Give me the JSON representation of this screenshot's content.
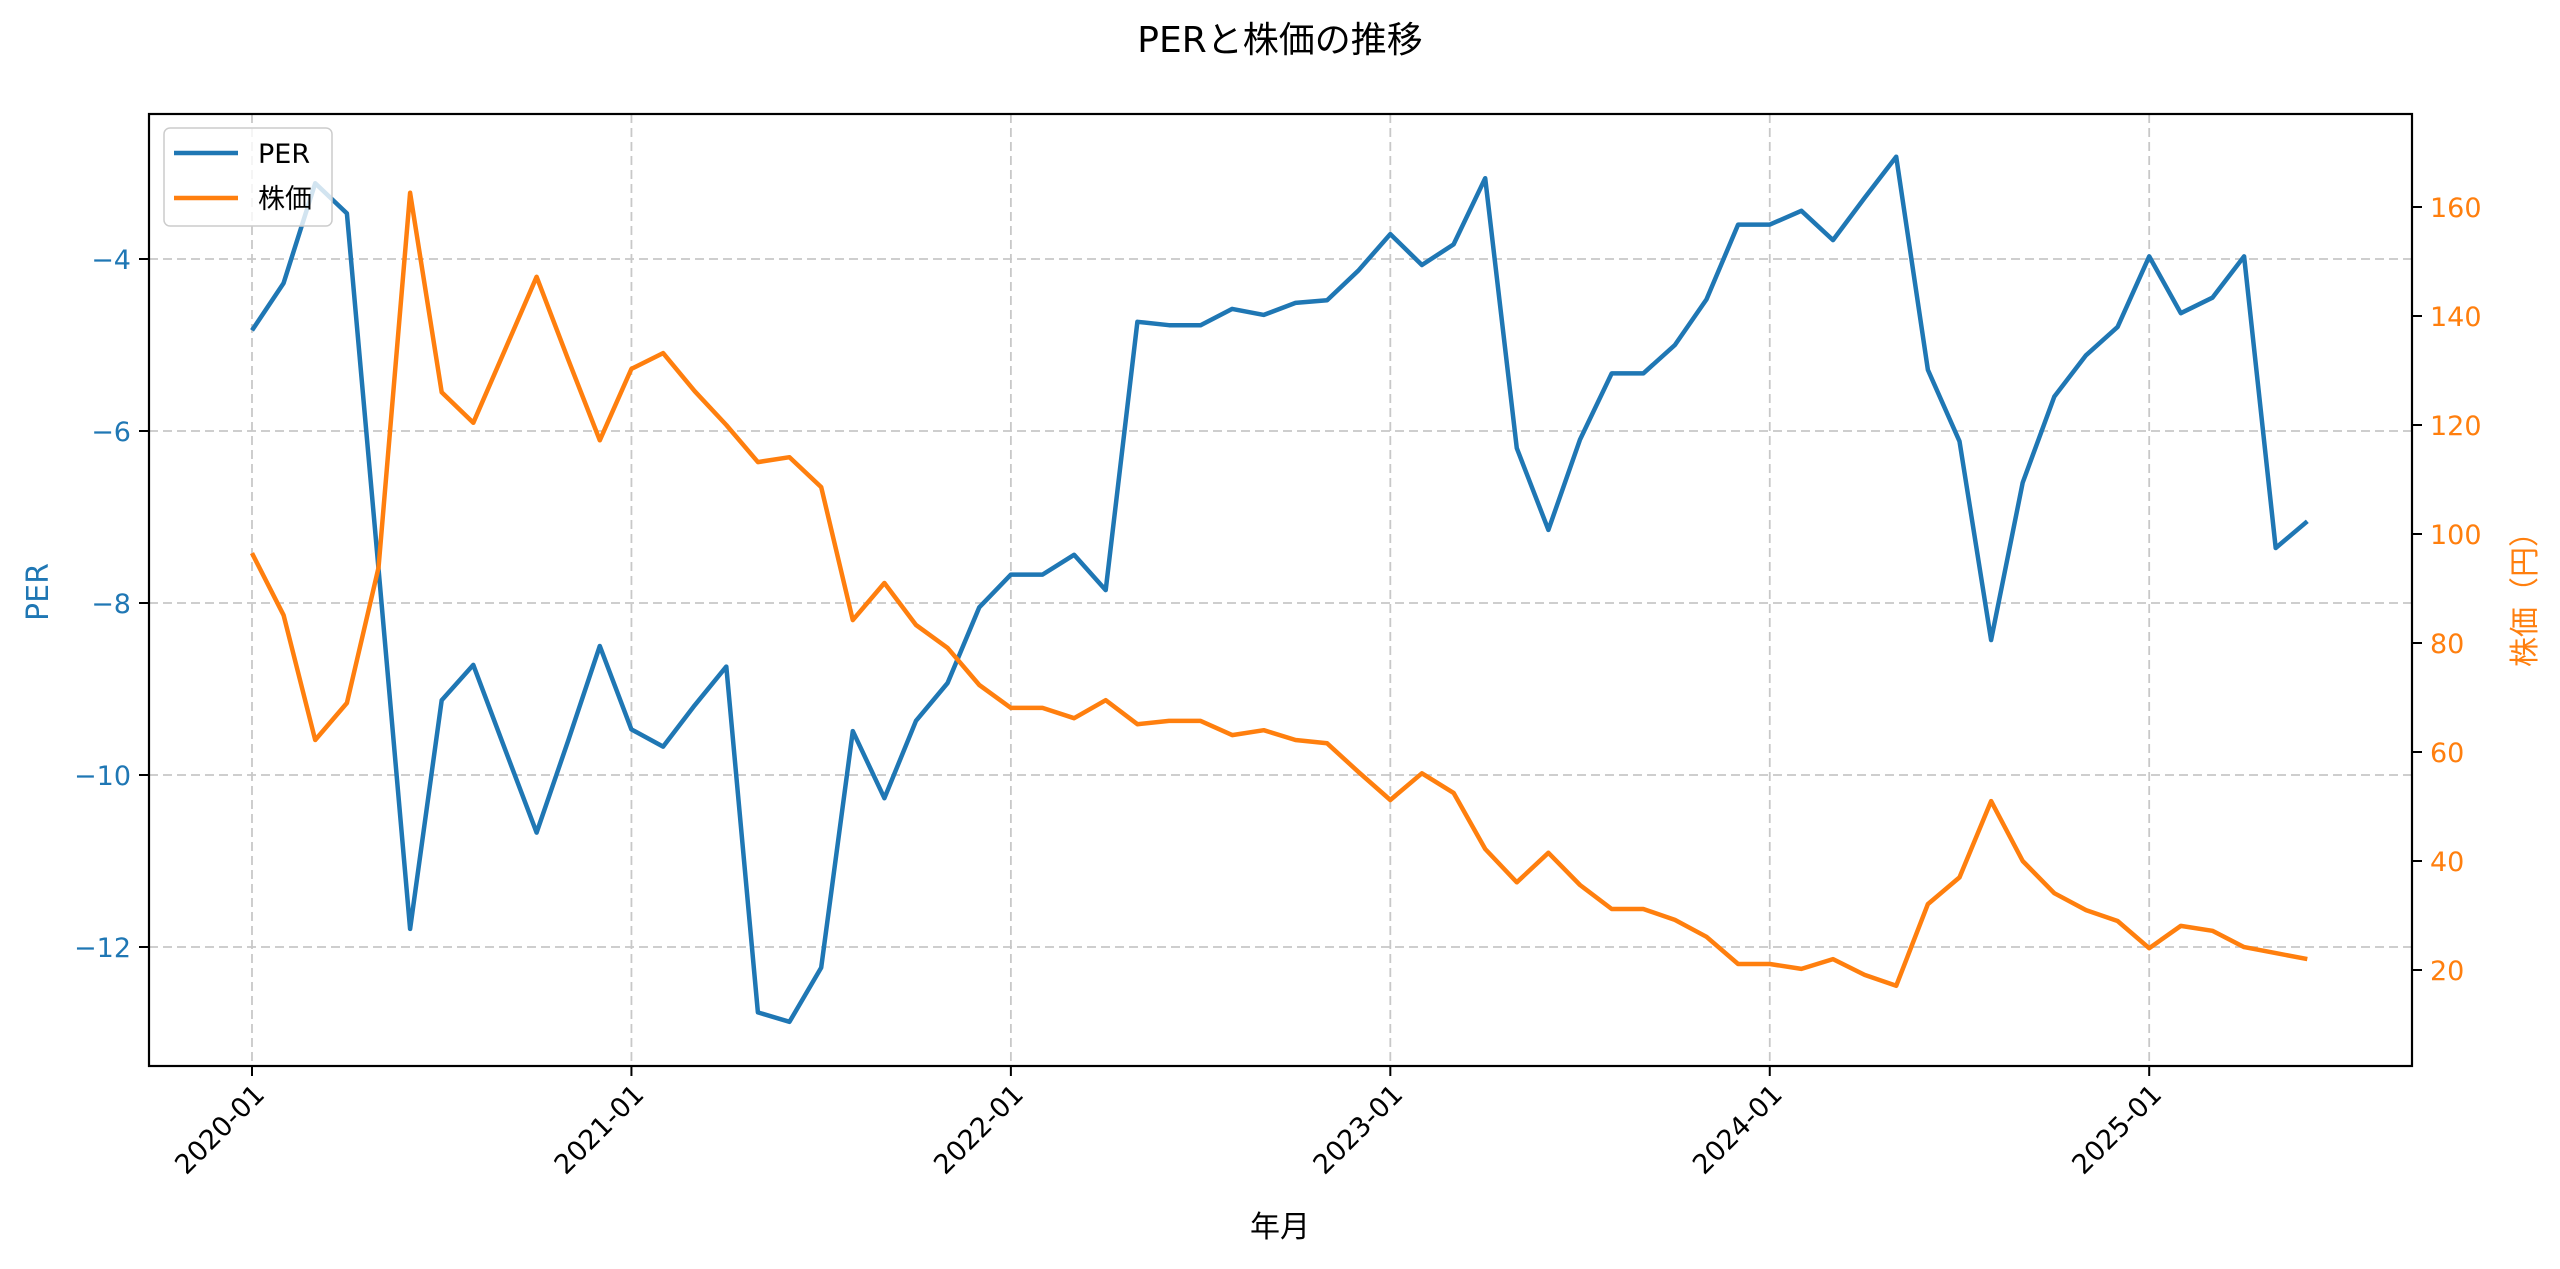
{
  "chart_data": {
    "type": "line",
    "title": "PERと株価の推移",
    "xlabel": "年月",
    "ylabel_left": "PER",
    "ylabel_right": "株価（円）",
    "x": [
      "2020-01",
      "2020-02",
      "2020-03",
      "2020-04",
      "2020-05",
      "2020-06",
      "2020-07",
      "2020-08",
      "2020-09",
      "2020-10",
      "2020-11",
      "2020-12",
      "2021-01",
      "2021-02",
      "2021-03",
      "2021-04",
      "2021-05",
      "2021-06",
      "2021-07",
      "2021-08",
      "2021-09",
      "2021-10",
      "2021-11",
      "2021-12",
      "2022-01",
      "2022-02",
      "2022-03",
      "2022-04",
      "2022-05",
      "2022-06",
      "2022-07",
      "2022-08",
      "2022-09",
      "2022-10",
      "2022-11",
      "2022-12",
      "2023-01",
      "2023-02",
      "2023-03",
      "2023-04",
      "2023-05",
      "2023-06",
      "2023-07",
      "2023-08",
      "2023-09",
      "2023-10",
      "2023-11",
      "2023-12",
      "2024-01",
      "2024-02",
      "2024-03",
      "2024-04",
      "2024-05",
      "2024-06",
      "2024-07",
      "2024-08",
      "2024-09",
      "2024-10",
      "2024-11",
      "2024-12",
      "2025-01",
      "2025-02",
      "2025-03",
      "2025-04",
      "2025-05",
      "2025-06"
    ],
    "series": [
      {
        "name": "PER",
        "axis": "left",
        "color": "#1f77b4",
        "values": [
          -4.83,
          -4.28,
          -3.12,
          -3.47,
          -7.6,
          -11.79,
          -9.13,
          -8.72,
          -9.7,
          -10.67,
          -9.6,
          -8.5,
          -9.47,
          -9.67,
          -9.19,
          -8.74,
          -12.76,
          -12.87,
          -12.24,
          -9.49,
          -10.27,
          -9.37,
          -8.93,
          -8.05,
          -7.67,
          -7.67,
          -7.44,
          -7.85,
          -4.73,
          -4.77,
          -4.77,
          -4.58,
          -4.65,
          -4.51,
          -4.48,
          -4.13,
          -3.71,
          -4.07,
          -3.83,
          -3.06,
          -6.2,
          -7.15,
          -6.1,
          -5.33,
          -5.33,
          -5.0,
          -4.47,
          -3.6,
          -3.6,
          -3.44,
          -3.78,
          -3.29,
          -2.81,
          -5.29,
          -6.12,
          -8.43,
          -6.6,
          -5.6,
          -5.12,
          -4.79,
          -3.97,
          -4.63,
          -4.45,
          -3.97,
          -7.36,
          -7.05
        ]
      },
      {
        "name": "株価",
        "axis": "right",
        "color": "#ff7f0e",
        "values": [
          96.5,
          85.1,
          62.2,
          69.0,
          93.8,
          162.6,
          126.0,
          120.4,
          133.8,
          147.2,
          132.0,
          117.2,
          130.3,
          133.2,
          126.2,
          120.0,
          113.2,
          114.1,
          108.6,
          84.2,
          91.0,
          83.3,
          79.1,
          72.3,
          68.1,
          68.1,
          66.2,
          69.5,
          65.1,
          65.7,
          65.7,
          63.1,
          64.0,
          62.2,
          61.6,
          56.3,
          51.2,
          56.1,
          52.5,
          42.2,
          36.1,
          41.5,
          35.6,
          31.2,
          31.2,
          29.2,
          26.1,
          21.1,
          21.1,
          20.2,
          22.0,
          19.1,
          17.1,
          32.1,
          37.0,
          51.0,
          40.0,
          34.1,
          31.0,
          29.0,
          24.0,
          28.1,
          27.2,
          24.2,
          23.1,
          22.0
        ]
      }
    ],
    "x_ticks": [
      "2020-01",
      "2021-01",
      "2022-01",
      "2023-01",
      "2024-01",
      "2025-01"
    ],
    "y_ticks_left": [
      -4,
      -6,
      -8,
      -10,
      -12
    ],
    "y_ticks_right": [
      20,
      40,
      60,
      80,
      100,
      120,
      140,
      160
    ],
    "ylim_left": [
      -13.58,
      -2.31
    ],
    "ylim_right": [
      3.0,
      177.6
    ],
    "grid": true,
    "legend_position": "upper left",
    "legend": [
      "PER",
      "株価"
    ]
  },
  "labels": {
    "title": "PERと株価の推移",
    "xlabel": "年月",
    "ylabel_left": "PER",
    "ylabel_right": "株価（円）",
    "legend_per": "PER",
    "legend_price": "株価"
  }
}
